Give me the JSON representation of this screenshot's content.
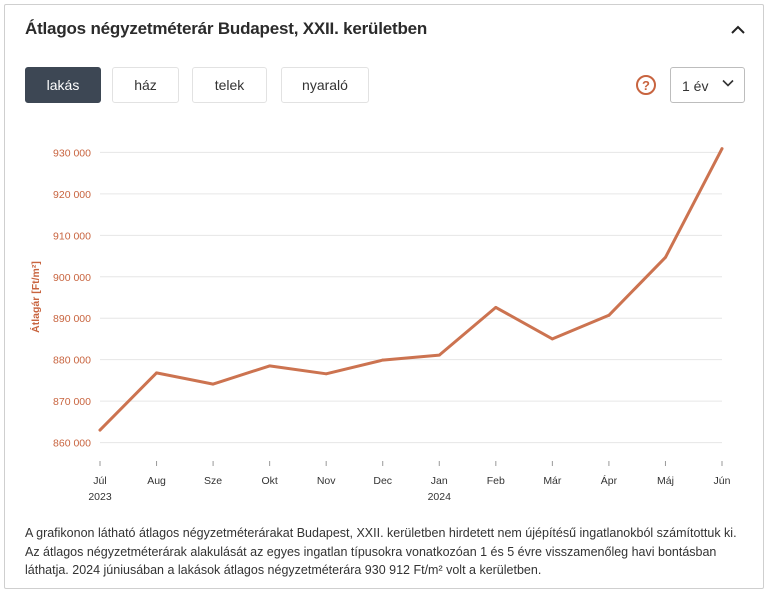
{
  "header": {
    "title": "Átlagos négyzetméterár Budapest, XXII. kerületben"
  },
  "tabs": [
    {
      "label": "lakás",
      "active": true
    },
    {
      "label": "ház",
      "active": false
    },
    {
      "label": "telek",
      "active": false
    },
    {
      "label": "nyaraló",
      "active": false
    }
  ],
  "controls": {
    "help_glyph": "?",
    "period": "1 év"
  },
  "colors": {
    "accent": "#c8643f",
    "line": "#cc7350",
    "active_tab": "#3d4754",
    "grid": "#e6e6e6"
  },
  "chart_data": {
    "type": "line",
    "ylabel": "Átlagár [Ft/m²]",
    "xlabel": "",
    "title": "",
    "ylim": [
      857000,
      933000
    ],
    "yticks": [
      860000,
      870000,
      880000,
      890000,
      900000,
      910000,
      920000,
      930000
    ],
    "ytick_labels": [
      "860 000",
      "870 000",
      "880 000",
      "890 000",
      "900 000",
      "910 000",
      "920 000",
      "930 000"
    ],
    "grid": true,
    "categories": [
      "Júl",
      "Aug",
      "Sze",
      "Okt",
      "Nov",
      "Dec",
      "Jan",
      "Feb",
      "Már",
      "Ápr",
      "Máj",
      "Jún"
    ],
    "year_labels": {
      "Júl": "2023",
      "Jan": "2024"
    },
    "series": [
      {
        "values": [
          863000,
          876800,
          874100,
          878500,
          876600,
          879900,
          881100,
          892600,
          885000,
          890700,
          904700,
          930912
        ]
      }
    ]
  },
  "description": "A grafikonon látható átlagos négyzetméterárakat Budapest, XXII. kerületben hirdetett nem újépítésű ingatlanokból számítottuk ki. Az átlagos négyzetméterárak alakulását az egyes ingatlan típusokra vonatkozóan 1 és 5 évre visszamenőleg havi bontásban láthatja. 2024 júniusában a lakások átlagos négyzetméterára 930 912 Ft/m² volt a kerületben."
}
